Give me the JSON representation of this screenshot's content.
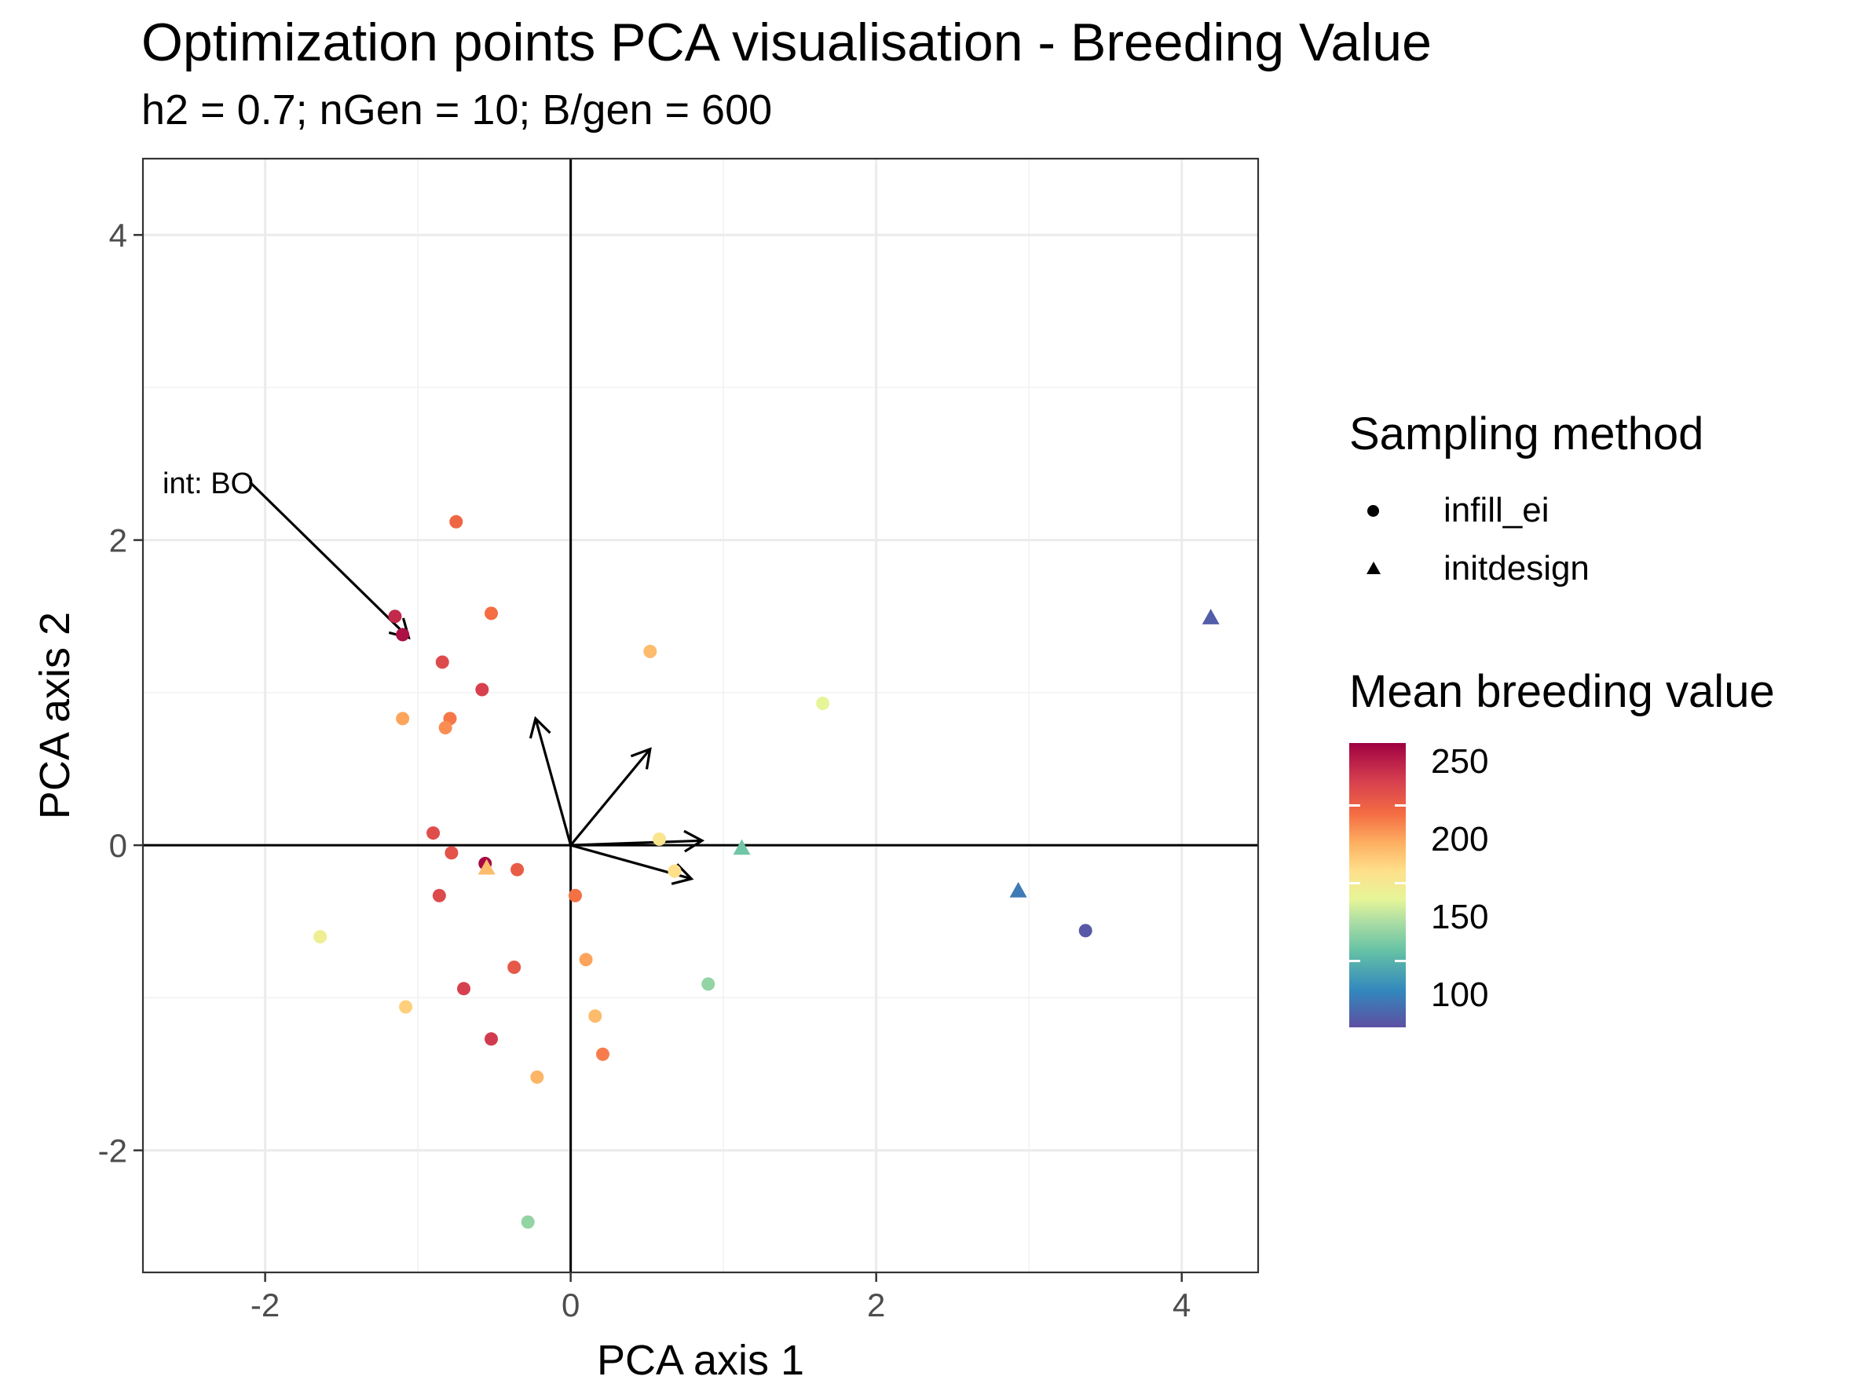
{
  "chart_data": {
    "type": "scatter",
    "title": "Optimization points PCA visualisation - Breeding Value",
    "subtitle": "h2 = 0.7; nGen = 10; B/gen = 600",
    "xlabel": "PCA axis 1",
    "ylabel": "PCA axis 2",
    "xlim": [
      -2.8,
      4.5
    ],
    "ylim": [
      -2.8,
      4.5
    ],
    "x_ticks": [
      -2,
      0,
      2,
      4
    ],
    "y_ticks": [
      -2,
      0,
      2,
      4
    ],
    "x_tick_labels": [
      "-2",
      "0",
      "2",
      "4"
    ],
    "y_tick_labels": [
      "-2",
      "0",
      "2",
      "4"
    ],
    "grid": true,
    "legend_position": "right",
    "shape_legend": {
      "title": "Sampling method",
      "entries": [
        {
          "label": "infill_ei",
          "shape": "circle"
        },
        {
          "label": "initdesign",
          "shape": "triangle"
        }
      ]
    },
    "color_legend": {
      "title": "Mean breeding value",
      "min": 85,
      "max": 265,
      "ticks": [
        100,
        150,
        200,
        250
      ],
      "tick_labels": [
        "100",
        "150",
        "200",
        "250"
      ],
      "colors_low_to_high": [
        "#5e4fa2",
        "#3288bd",
        "#66c2a5",
        "#abdda4",
        "#e6f598",
        "#fee08b",
        "#fdae61",
        "#f46d43",
        "#d53e4f",
        "#9e0142"
      ]
    },
    "points": [
      {
        "x": -1.15,
        "y": 1.5,
        "value": 252,
        "method": "infill_ei"
      },
      {
        "x": -1.1,
        "y": 1.38,
        "value": 260,
        "method": "infill_ei"
      },
      {
        "x": -0.75,
        "y": 2.12,
        "value": 228,
        "method": "infill_ei"
      },
      {
        "x": -0.52,
        "y": 1.52,
        "value": 225,
        "method": "infill_ei"
      },
      {
        "x": -0.84,
        "y": 1.2,
        "value": 240,
        "method": "infill_ei"
      },
      {
        "x": -0.58,
        "y": 1.02,
        "value": 244,
        "method": "infill_ei"
      },
      {
        "x": -1.1,
        "y": 0.83,
        "value": 208,
        "method": "infill_ei"
      },
      {
        "x": -0.79,
        "y": 0.83,
        "value": 222,
        "method": "infill_ei"
      },
      {
        "x": -0.82,
        "y": 0.77,
        "value": 215,
        "method": "infill_ei"
      },
      {
        "x": 0.52,
        "y": 1.27,
        "value": 200,
        "method": "infill_ei"
      },
      {
        "x": 1.65,
        "y": 0.93,
        "value": 165,
        "method": "infill_ei"
      },
      {
        "x": -0.9,
        "y": 0.08,
        "value": 238,
        "method": "infill_ei"
      },
      {
        "x": -0.78,
        "y": -0.05,
        "value": 236,
        "method": "infill_ei"
      },
      {
        "x": -0.56,
        "y": -0.12,
        "value": 262,
        "method": "infill_ei"
      },
      {
        "x": -0.35,
        "y": -0.16,
        "value": 232,
        "method": "infill_ei"
      },
      {
        "x": -0.86,
        "y": -0.33,
        "value": 240,
        "method": "infill_ei"
      },
      {
        "x": 0.03,
        "y": -0.33,
        "value": 224,
        "method": "infill_ei"
      },
      {
        "x": 0.58,
        "y": 0.04,
        "value": 180,
        "method": "infill_ei"
      },
      {
        "x": 0.68,
        "y": -0.17,
        "value": 185,
        "method": "infill_ei"
      },
      {
        "x": -1.64,
        "y": -0.6,
        "value": 172,
        "method": "infill_ei"
      },
      {
        "x": -0.37,
        "y": -0.8,
        "value": 234,
        "method": "infill_ei"
      },
      {
        "x": -0.7,
        "y": -0.94,
        "value": 244,
        "method": "infill_ei"
      },
      {
        "x": 0.1,
        "y": -0.75,
        "value": 208,
        "method": "infill_ei"
      },
      {
        "x": 0.9,
        "y": -0.91,
        "value": 138,
        "method": "infill_ei"
      },
      {
        "x": -1.08,
        "y": -1.06,
        "value": 192,
        "method": "infill_ei"
      },
      {
        "x": 0.16,
        "y": -1.12,
        "value": 200,
        "method": "infill_ei"
      },
      {
        "x": -0.52,
        "y": -1.27,
        "value": 246,
        "method": "infill_ei"
      },
      {
        "x": 0.21,
        "y": -1.37,
        "value": 220,
        "method": "infill_ei"
      },
      {
        "x": -0.22,
        "y": -1.52,
        "value": 202,
        "method": "infill_ei"
      },
      {
        "x": -0.28,
        "y": -2.47,
        "value": 138,
        "method": "infill_ei"
      },
      {
        "x": 3.37,
        "y": -0.56,
        "value": 88,
        "method": "infill_ei"
      },
      {
        "x": -0.55,
        "y": -0.15,
        "value": 200,
        "method": "initdesign"
      },
      {
        "x": 1.12,
        "y": -0.02,
        "value": 128,
        "method": "initdesign"
      },
      {
        "x": 2.93,
        "y": -0.3,
        "value": 100,
        "method": "initdesign"
      },
      {
        "x": 4.19,
        "y": 1.49,
        "value": 90,
        "method": "initdesign"
      }
    ],
    "arrows": [
      {
        "x0": 0,
        "y0": 0,
        "x1": -0.23,
        "y1": 0.83
      },
      {
        "x0": 0,
        "y0": 0,
        "x1": 0.52,
        "y1": 0.63
      },
      {
        "x0": 0,
        "y0": 0,
        "x1": 0.86,
        "y1": 0.03
      },
      {
        "x0": 0,
        "y0": 0,
        "x1": 0.79,
        "y1": -0.22
      }
    ],
    "annotation": {
      "text": "int: BO",
      "arrow": {
        "x0": -2.1,
        "y0": 2.38,
        "x1": -1.06,
        "y1": 1.36
      }
    }
  }
}
